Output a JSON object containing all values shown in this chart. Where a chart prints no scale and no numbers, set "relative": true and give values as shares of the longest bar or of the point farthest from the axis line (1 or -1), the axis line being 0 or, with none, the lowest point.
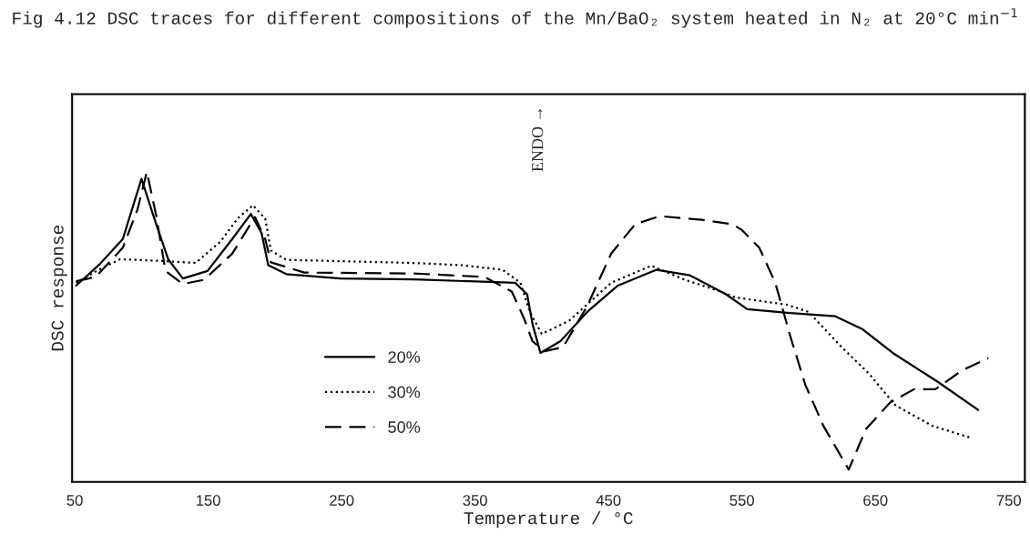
{
  "chart_data": {
    "type": "line",
    "title": "Fig 4.12 DSC traces for different compositions of the Mn/BaO₂ system heated in N₂ at 20°C min$^{−1}$",
    "xlabel": "Temperature / °C",
    "ylabel": "DSC response",
    "relative": true,
    "xlim": [
      48,
      762
    ],
    "xticks": [
      50,
      150,
      250,
      350,
      450,
      550,
      650,
      750
    ],
    "grid": false,
    "legend": "bottom left",
    "annotations": [
      "ENDO →"
    ],
    "series": [
      {
        "name": "20%",
        "color": "#000000",
        "line_style": "solid",
        "x": [
          51,
          68,
          86,
          100,
          111,
          120,
          131,
          149.5,
          168,
          182,
          190,
          195,
          208.5,
          249,
          304,
          380,
          389,
          393,
          399,
          414,
          434,
          457,
          486,
          511,
          538,
          554,
          584,
          620,
          640.5,
          663,
          697,
          727
        ],
        "values": [
          0.633,
          0.699,
          0.783,
          0.977,
          0.831,
          0.718,
          0.656,
          0.68,
          0.783,
          0.864,
          0.802,
          0.699,
          0.67,
          0.656,
          0.653,
          0.642,
          0.605,
          0.51,
          0.416,
          0.454,
          0.548,
          0.633,
          0.684,
          0.666,
          0.605,
          0.557,
          0.545,
          0.534,
          0.492,
          0.416,
          0.322,
          0.232
        ]
      },
      {
        "name": "30%",
        "color": "#000000",
        "line_style": "dotted",
        "x": [
          51,
          68,
          84,
          113,
          140.5,
          159,
          172,
          183.5,
          192.7,
          197,
          208.5,
          304,
          339,
          370.6,
          384,
          391,
          400,
          420.5,
          452,
          482,
          507,
          534,
          545,
          584,
          600,
          624.6,
          645,
          665,
          692.6,
          721
        ],
        "values": [
          0.642,
          0.684,
          0.718,
          0.713,
          0.706,
          0.774,
          0.849,
          0.892,
          0.849,
          0.746,
          0.716,
          0.706,
          0.699,
          0.684,
          0.642,
          0.548,
          0.477,
          0.52,
          0.642,
          0.697,
          0.652,
          0.614,
          0.595,
          0.571,
          0.548,
          0.435,
          0.35,
          0.247,
          0.181,
          0.143
        ]
      },
      {
        "name": "50%",
        "color": "#000000",
        "line_style": "dashed",
        "x": [
          51,
          65.6,
          86,
          97,
          104,
          111,
          118,
          131,
          147,
          168,
          185,
          192.7,
          197,
          222,
          304,
          357,
          377.5,
          386.5,
          393,
          402,
          416,
          434,
          452,
          470,
          488.5,
          520,
          543,
          550,
          563,
          575,
          586,
          597.5,
          611,
          630,
          643,
          661,
          679,
          695,
          715,
          734.6
        ],
        "values": [
          0.647,
          0.661,
          0.755,
          0.878,
          1.0,
          0.859,
          0.68,
          0.638,
          0.652,
          0.736,
          0.854,
          0.783,
          0.708,
          0.675,
          0.672,
          0.661,
          0.614,
          0.529,
          0.454,
          0.421,
          0.435,
          0.567,
          0.736,
          0.831,
          0.857,
          0.845,
          0.831,
          0.812,
          0.755,
          0.642,
          0.473,
          0.313,
          0.181,
          0.04,
          0.171,
          0.256,
          0.299,
          0.299,
          0.36,
          0.399
        ]
      }
    ]
  }
}
